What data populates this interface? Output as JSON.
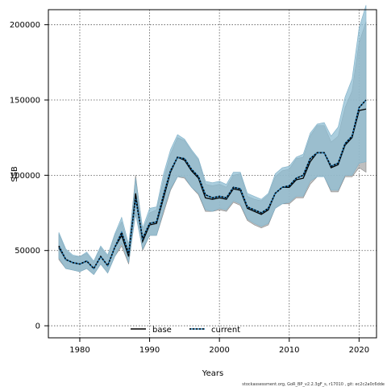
{
  "chart_data": {
    "type": "line",
    "title": "",
    "xlabel": "Years",
    "ylabel": "SSB",
    "xlim": [
      1975.5,
      2022.5
    ],
    "ylim": [
      -8000,
      210000
    ],
    "x_ticks": [
      1980,
      1990,
      2000,
      2010,
      2020
    ],
    "x_tick_labels": [
      "1980",
      "1990",
      "2000",
      "2010",
      "2020"
    ],
    "y_ticks": [
      0,
      50000,
      100000,
      150000,
      200000
    ],
    "y_tick_labels": [
      "0",
      "50000",
      "100000",
      "150000",
      "200000"
    ],
    "grid": true,
    "legend_position": "bottom-center",
    "colors": {
      "base_band": "#a9a9a9",
      "current_band": "#8fbdd3",
      "base_line": "#000000",
      "current_line": "#000000",
      "current_line_dash": "#1f78b4"
    },
    "series": [
      {
        "name": "base",
        "x": [
          1977,
          1978,
          1979,
          1980,
          1981,
          1982,
          1983,
          1984,
          1985,
          1986,
          1987,
          1988,
          1989,
          1990,
          1991,
          1992,
          1993,
          1994,
          1995,
          1996,
          1997,
          1998,
          1999,
          2000,
          2001,
          2002,
          2003,
          2004,
          2005,
          2006,
          2007,
          2008,
          2009,
          2010,
          2011,
          2012,
          2013,
          2014,
          2015,
          2016,
          2017,
          2018,
          2019,
          2020,
          2021
        ],
        "values": [
          52000,
          44000,
          42000,
          41000,
          43000,
          38000,
          46000,
          40000,
          52000,
          60000,
          46000,
          88000,
          56000,
          67000,
          68000,
          85000,
          102000,
          112000,
          110000,
          103000,
          98000,
          85000,
          84000,
          85000,
          84000,
          91000,
          90000,
          78000,
          76000,
          74000,
          77000,
          88000,
          92000,
          92000,
          97000,
          98000,
          109000,
          115000,
          115000,
          105000,
          107000,
          120000,
          125000,
          143000,
          144000
        ],
        "lower": [
          44000,
          38000,
          37000,
          36000,
          38000,
          34000,
          41000,
          35000,
          46000,
          53000,
          41000,
          76000,
          50000,
          60000,
          60000,
          75000,
          90000,
          99000,
          98000,
          92000,
          87000,
          76000,
          76000,
          77000,
          76000,
          82000,
          80000,
          70000,
          67000,
          65000,
          67000,
          78000,
          81000,
          81000,
          85000,
          85000,
          94000,
          99000,
          99000,
          89000,
          89000,
          99000,
          99000,
          105000,
          102000
        ],
        "upper": [
          61000,
          50000,
          46000,
          46000,
          48000,
          42000,
          52000,
          46000,
          60000,
          69000,
          52000,
          100000,
          63000,
          75000,
          77000,
          97000,
          114000,
          125000,
          123000,
          116000,
          110000,
          94000,
          93000,
          94000,
          92000,
          100000,
          101000,
          86000,
          84000,
          83000,
          87000,
          99000,
          103000,
          104000,
          111000,
          112000,
          126000,
          133000,
          133000,
          122000,
          126000,
          145000,
          156000,
          188000,
          202000
        ]
      },
      {
        "name": "current",
        "x": [
          1977,
          1978,
          1979,
          1980,
          1981,
          1982,
          1983,
          1984,
          1985,
          1986,
          1987,
          1988,
          1989,
          1990,
          1991,
          1992,
          1993,
          1994,
          1995,
          1996,
          1997,
          1998,
          1999,
          2000,
          2001,
          2002,
          2003,
          2004,
          2005,
          2006,
          2007,
          2008,
          2009,
          2010,
          2011,
          2012,
          2013,
          2014,
          2015,
          2016,
          2017,
          2018,
          2019,
          2020,
          2021
        ],
        "values": [
          53000,
          44000,
          42000,
          41000,
          43000,
          38000,
          46000,
          40000,
          52000,
          62000,
          48000,
          85000,
          58000,
          68000,
          69000,
          87000,
          103000,
          112000,
          111000,
          104000,
          99000,
          87000,
          85000,
          86000,
          85000,
          92000,
          91000,
          79000,
          77000,
          75000,
          78000,
          88000,
          92000,
          93000,
          98000,
          100000,
          111000,
          115000,
          115000,
          106000,
          108000,
          121000,
          126000,
          145000,
          150000
        ],
        "lower": [
          45000,
          38000,
          37000,
          36000,
          38000,
          34000,
          41000,
          35000,
          46000,
          55000,
          42000,
          74000,
          51000,
          60000,
          60000,
          77000,
          91000,
          99000,
          99000,
          92000,
          88000,
          77000,
          76000,
          78000,
          77000,
          83000,
          81000,
          71000,
          68000,
          66000,
          68000,
          78000,
          81000,
          82000,
          86000,
          86000,
          96000,
          99000,
          99000,
          90000,
          90000,
          100000,
          100000,
          108000,
          109000
        ],
        "upper": [
          62000,
          51000,
          47000,
          46000,
          49000,
          43000,
          53000,
          47000,
          61000,
          72000,
          54000,
          98000,
          65000,
          78000,
          79000,
          101000,
          117000,
          127000,
          124000,
          117000,
          111000,
          96000,
          95000,
          96000,
          94000,
          102000,
          102000,
          88000,
          86000,
          84000,
          88000,
          101000,
          105000,
          106000,
          112000,
          114000,
          128000,
          134000,
          135000,
          126000,
          132000,
          152000,
          164000,
          198000,
          213000
        ]
      }
    ],
    "footnote": "stockassessment.org, GoR_BP_v2.2.3gF_s, r17010 , git: ec2c2a0c6dde"
  }
}
